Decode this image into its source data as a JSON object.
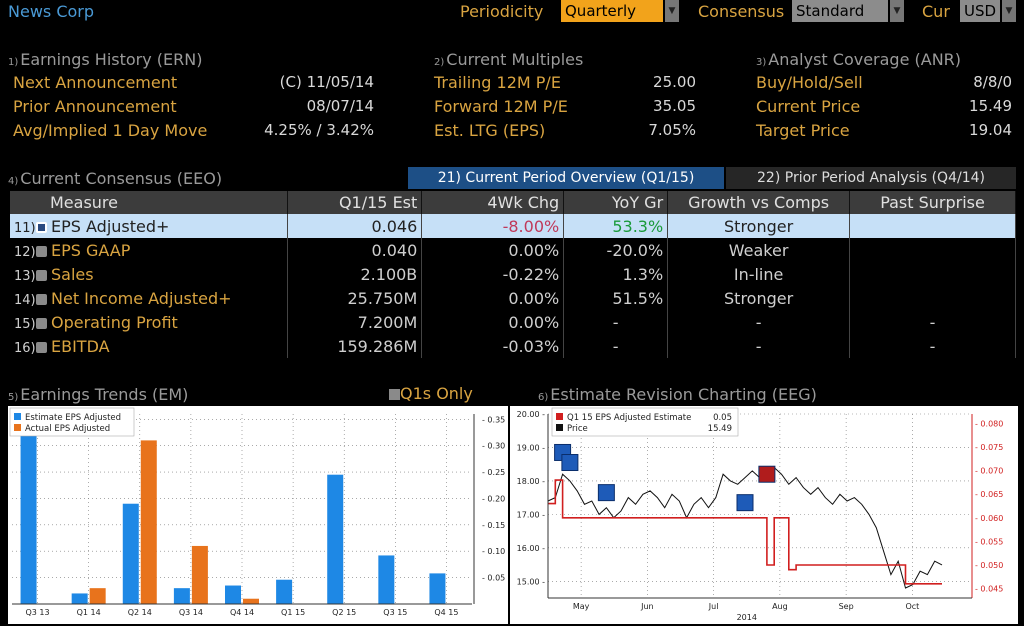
{
  "header": {
    "company": "News Corp",
    "periodicity_label": "Periodicity",
    "periodicity_value": "Quarterly",
    "consensus_label": "Consensus",
    "consensus_value": "Standard",
    "cur_label": "Cur",
    "cur_value": "USD"
  },
  "earnings_history": {
    "num": "1)",
    "title": "Earnings History (ERN)",
    "rows": [
      {
        "label": "Next Announcement",
        "value": "(C)  11/05/14"
      },
      {
        "label": "Prior Announcement",
        "value": "08/07/14"
      },
      {
        "label": "Avg/Implied 1 Day Move",
        "value": "4.25% / 3.42%"
      }
    ]
  },
  "current_multiples": {
    "num": "2)",
    "title": "Current Multiples",
    "rows": [
      {
        "label": "Trailing 12M P/E",
        "value": "25.00"
      },
      {
        "label": "Forward 12M P/E",
        "value": "35.05"
      },
      {
        "label": "Est. LTG (EPS)",
        "value": "7.05%"
      }
    ]
  },
  "analyst_coverage": {
    "num": "3)",
    "title": "Analyst Coverage (ANR)",
    "rows": [
      {
        "label": "Buy/Hold/Sell",
        "value": "8/8/0"
      },
      {
        "label": "Current Price",
        "value": "15.49"
      },
      {
        "label": "Target Price",
        "value": "19.04"
      }
    ]
  },
  "consensus": {
    "num": "4)",
    "title": "Current Consensus (EEO)",
    "tab_current": "21) Current Period Overview (Q1/15)",
    "tab_prior": "22) Prior Period Analysis (Q4/14)",
    "columns": [
      "Measure",
      "Q1/15 Est",
      "4Wk Chg",
      "YoY Gr",
      "Growth vs Comps",
      "Past Surprise"
    ],
    "rows": [
      {
        "n": "11)",
        "measure": "EPS Adjusted+",
        "est": "0.046",
        "chg": "-8.00%",
        "yoy": "53.3%",
        "growth": "Stronger",
        "surprise": ""
      },
      {
        "n": "12)",
        "measure": "EPS GAAP",
        "est": "0.040",
        "chg": "0.00%",
        "yoy": "-20.0%",
        "growth": "Weaker",
        "surprise": ""
      },
      {
        "n": "13)",
        "measure": "Sales",
        "est": "2.100B",
        "chg": "-0.22%",
        "yoy": "1.3%",
        "growth": "In-line",
        "surprise": ""
      },
      {
        "n": "14)",
        "measure": "Net Income Adjusted+",
        "est": "25.750M",
        "chg": "0.00%",
        "yoy": "51.5%",
        "growth": "Stronger",
        "surprise": ""
      },
      {
        "n": "15)",
        "measure": "Operating Profit",
        "est": "7.200M",
        "chg": "0.00%",
        "yoy": "-",
        "growth": "-",
        "surprise": "-"
      },
      {
        "n": "16)",
        "measure": "EBITDA",
        "est": "159.286M",
        "chg": "-0.03%",
        "yoy": "-",
        "growth": "-",
        "surprise": "-"
      }
    ]
  },
  "earnings_trends": {
    "num": "5)",
    "title": "Earnings Trends (EM)",
    "q1s_label": "Q1s Only"
  },
  "estimate_revision": {
    "num": "6)",
    "title": "Estimate Revision Charting (EEG)"
  },
  "colors": {
    "amber": "#d9a441",
    "blue": "#1e88e5",
    "orange": "#e8731c",
    "red": "#d11f1f",
    "selected_row": "#c6e0f7"
  },
  "chart_data": [
    {
      "type": "bar",
      "legend": [
        "Estimate EPS Adjusted",
        "Actual EPS Adjusted"
      ],
      "categories": [
        "Q3 13",
        "Q1 14",
        "Q2 14",
        "Q3 14",
        "Q4 14",
        "Q1 15",
        "Q2 15",
        "Q3 15",
        "Q4 15"
      ],
      "series": [
        {
          "name": "Estimate EPS Adjusted",
          "values": [
            0.36,
            0.02,
            0.19,
            0.03,
            0.035,
            0.046,
            0.245,
            0.092,
            0.058
          ]
        },
        {
          "name": "Actual EPS Adjusted",
          "values": [
            null,
            0.03,
            0.31,
            0.11,
            0.01,
            null,
            null,
            null,
            null
          ]
        }
      ],
      "ylim": [
        0,
        0.36
      ],
      "yticks": [
        "0.05",
        "0.10",
        "0.15",
        "0.20",
        "0.25",
        "0.30",
        "0.35"
      ],
      "grid": true,
      "legend_position": "top-left"
    },
    {
      "type": "line",
      "legend": [
        {
          "name": "Q1 15 EPS Adjusted Estimate",
          "value": "0.05"
        },
        {
          "name": "Price",
          "value": "15.49"
        }
      ],
      "x_labels": [
        "May",
        "Jun",
        "Jul",
        "Aug",
        "Sep",
        "Oct"
      ],
      "x_year": "2014",
      "left_ylim": [
        14.5,
        20.0
      ],
      "left_yticks": [
        "15.00",
        "16.00",
        "17.00",
        "18.00",
        "19.00",
        "20.00"
      ],
      "right_ylim": [
        0.043,
        0.082
      ],
      "right_yticks": [
        "0.045",
        "0.050",
        "0.055",
        "0.060",
        "0.065",
        "0.070",
        "0.075",
        "0.080"
      ],
      "price": [
        17.4,
        17.5,
        18.2,
        18.0,
        17.7,
        17.3,
        17.4,
        17.0,
        17.2,
        16.9,
        17.1,
        17.5,
        17.3,
        17.6,
        17.7,
        17.5,
        17.2,
        17.6,
        17.4,
        16.9,
        17.3,
        17.5,
        17.2,
        17.5,
        18.2,
        18.0,
        17.9,
        18.1,
        18.3,
        18.1,
        18.2,
        18.4,
        18.2,
        17.9,
        18.1,
        17.8,
        17.6,
        17.8,
        17.5,
        17.3,
        17.6,
        17.4,
        17.5,
        17.3,
        17.0,
        16.6,
        15.9,
        15.2,
        15.6,
        14.8,
        14.9,
        15.3,
        15.2,
        15.6,
        15.49
      ],
      "estimate": [
        0.063,
        0.068,
        0.06,
        0.06,
        0.06,
        0.06,
        0.06,
        0.06,
        0.06,
        0.06,
        0.06,
        0.06,
        0.06,
        0.06,
        0.06,
        0.06,
        0.06,
        0.06,
        0.06,
        0.06,
        0.06,
        0.06,
        0.06,
        0.06,
        0.06,
        0.06,
        0.06,
        0.06,
        0.06,
        0.06,
        0.05,
        0.06,
        0.06,
        0.049,
        0.05,
        0.05,
        0.05,
        0.05,
        0.05,
        0.05,
        0.05,
        0.05,
        0.05,
        0.05,
        0.05,
        0.05,
        0.05,
        0.05,
        0.05,
        0.046,
        0.046,
        0.046,
        0.046,
        0.046,
        0.046
      ],
      "grid": true,
      "legend_position": "top-left"
    }
  ]
}
